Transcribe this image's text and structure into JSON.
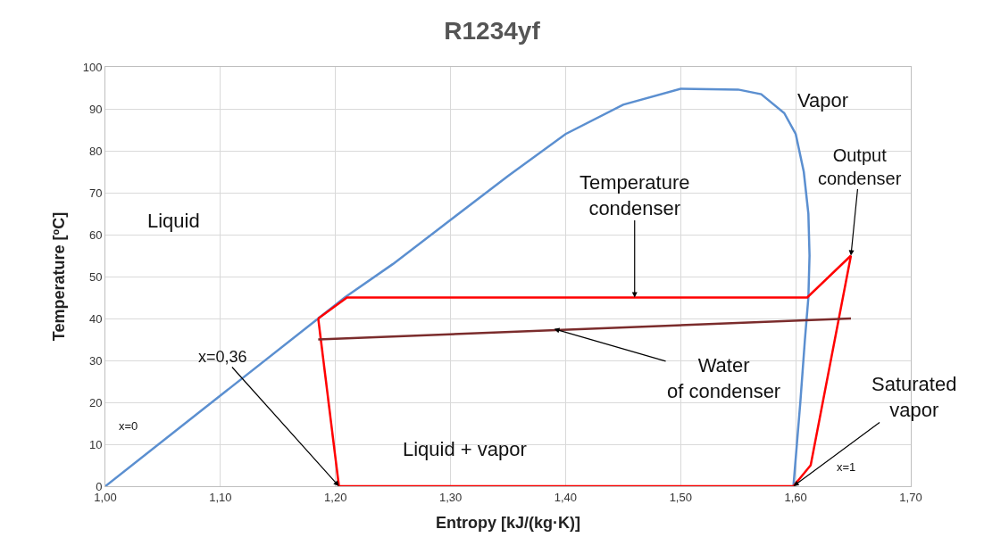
{
  "chart_data": {
    "type": "line",
    "title": "R1234yf",
    "xlabel": "Entropy [kJ/(kg·K)]",
    "ylabel": "Temperature [ºC]",
    "series": [
      {
        "color": "#5b8fd0",
        "x": [
          1.0,
          1.185,
          1.208,
          1.25,
          1.3,
          1.35,
          1.4,
          1.45,
          1.5,
          1.55,
          1.57,
          1.59,
          1.6,
          1.607,
          1.611,
          1.612,
          1.611,
          1.608,
          1.604,
          1.601,
          1.598
        ],
        "values": [
          0,
          40,
          45,
          53,
          63.5,
          74,
          84,
          91,
          94.8,
          94.6,
          93.5,
          89,
          84,
          75,
          65,
          55,
          45,
          35,
          20,
          10,
          0
        ]
      },
      {
        "color": "#ff0000",
        "x": [
          1.203,
          1.598,
          1.613,
          1.648
        ],
        "values": [
          0,
          0,
          5,
          55
        ]
      },
      {
        "color": "#ff0000",
        "x": [
          1.185,
          1.21,
          1.61,
          1.648
        ],
        "values": [
          40,
          45,
          45,
          55
        ]
      },
      {
        "color": "#ff0000",
        "x": [
          1.185,
          1.203
        ],
        "values": [
          40,
          0
        ]
      },
      {
        "color": "#7b2c2c",
        "x": [
          1.185,
          1.648
        ],
        "values": [
          35,
          40
        ]
      }
    ],
    "xlim": [
      1.0,
      1.7
    ],
    "ylim": [
      0,
      100
    ],
    "xticks": [
      {
        "value": 1.0,
        "label": "1,00"
      },
      {
        "value": 1.1,
        "label": "1,10"
      },
      {
        "value": 1.2,
        "label": "1,20"
      },
      {
        "value": 1.3,
        "label": "1,30"
      },
      {
        "value": 1.4,
        "label": "1,40"
      },
      {
        "value": 1.5,
        "label": "1,50"
      },
      {
        "value": 1.6,
        "label": "1,60"
      },
      {
        "value": 1.7,
        "label": "1,70"
      }
    ],
    "yticks": [
      0,
      10,
      20,
      30,
      40,
      50,
      60,
      70,
      80,
      90,
      100
    ],
    "grid": true,
    "marker": "none",
    "line_style": "solid",
    "annotations": [
      {
        "text": "Temperature condenser",
        "x": 1.46,
        "y": 45
      },
      {
        "text": "Output condenser",
        "x": 1.648,
        "y": 55
      },
      {
        "text": "Water of condenser",
        "x": 1.39,
        "y": 37.5
      },
      {
        "text": "Saturated vapor",
        "x": 1.598,
        "y": 0
      },
      {
        "text": "x=0,36",
        "x": 1.203,
        "y": 0
      },
      "Liquid",
      "Vapor",
      "Liquid + vapor",
      "x=0",
      "x=1"
    ]
  }
}
